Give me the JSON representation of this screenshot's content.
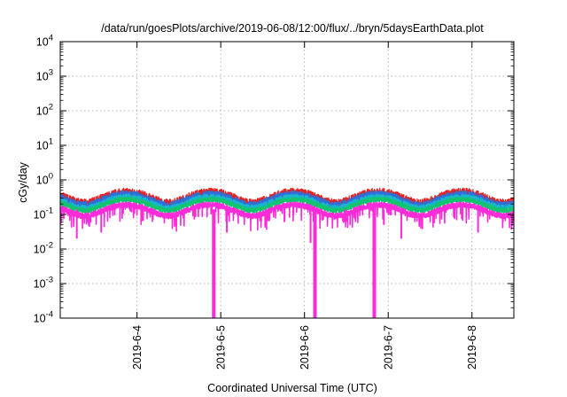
{
  "chart_data": {
    "type": "line",
    "title": "/data/run/goesPlots/archive/2019-06-08/12:00/flux/../bryn/5daysEarthData.plot",
    "xlabel": "Coordinated Universal Time (UTC)",
    "ylabel": "cGy/day",
    "yscale": "log",
    "ylim": [
      0.0001,
      10000
    ],
    "xlim": [
      "2019-06-03 02:00",
      "2019-06-08 12:00"
    ],
    "grid": true,
    "y_tick_labels": [
      {
        "base": "10",
        "exp": "-4"
      },
      {
        "base": "10",
        "exp": "-3"
      },
      {
        "base": "10",
        "exp": "-2"
      },
      {
        "base": "10",
        "exp": "-1"
      },
      {
        "base": "10",
        "exp": "0"
      },
      {
        "base": "10",
        "exp": "1"
      },
      {
        "base": "10",
        "exp": "2"
      },
      {
        "base": "10",
        "exp": "3"
      },
      {
        "base": "10",
        "exp": "4"
      }
    ],
    "x_tick_labels": [
      "2019-6-4",
      "2019-6-5",
      "2019-6-6",
      "2019-6-7",
      "2019-6-8"
    ],
    "x_tick_dates": [
      "2019-06-04",
      "2019-06-05",
      "2019-06-06",
      "2019-06-07",
      "2019-06-08"
    ],
    "series": [
      {
        "color": "#e8201f",
        "level": 0.32,
        "amplitude": 1.35
      },
      {
        "color": "#2f6fd6",
        "level": 0.28,
        "amplitude": 1.3
      },
      {
        "color": "#19b5d0",
        "level": 0.23,
        "amplitude": 1.25
      },
      {
        "color": "#12c46e",
        "level": 0.2,
        "amplitude": 1.2
      },
      {
        "color": "#ff2ad8",
        "level": 0.14,
        "amplitude": 1.2
      }
    ],
    "dropouts": [
      {
        "time": "2019-06-04 22:00",
        "min": 0.0001
      },
      {
        "time": "2019-06-06 03:00",
        "min": 0.0001
      },
      {
        "time": "2019-06-06 20:00",
        "min": 0.0001
      },
      {
        "time": "2019-06-03 07:00",
        "min": 0.02
      },
      {
        "time": "2019-06-03 14:00",
        "min": 0.03
      },
      {
        "time": "2019-06-05 02:00",
        "min": 0.03
      },
      {
        "time": "2019-06-06 02:00",
        "min": 0.015
      },
      {
        "time": "2019-06-06 12:00",
        "min": 0.06
      },
      {
        "time": "2019-06-06 23:00",
        "min": 0.05
      },
      {
        "time": "2019-06-07 04:00",
        "min": 0.02
      },
      {
        "time": "2019-06-08 02:00",
        "min": 0.03
      }
    ],
    "colors": {
      "axis": "#000000",
      "grid": "#a0a0a0",
      "background": "#ffffff"
    }
  }
}
